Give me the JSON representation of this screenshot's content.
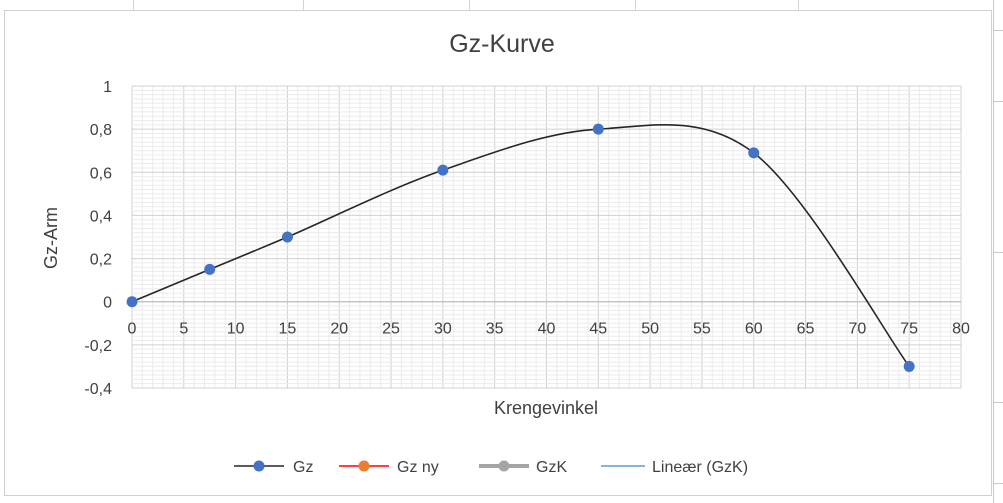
{
  "chart_data": {
    "type": "scatter",
    "title": "Gz-Kurve",
    "xlabel": "Krengevinkel",
    "ylabel": "Gz-Arm",
    "xlim": [
      0,
      80
    ],
    "ylim": [
      -0.4,
      1
    ],
    "x_ticks": [
      "0",
      "5",
      "10",
      "15",
      "20",
      "25",
      "30",
      "35",
      "40",
      "45",
      "50",
      "55",
      "60",
      "65",
      "70",
      "75",
      "80"
    ],
    "y_ticks": [
      "1",
      "0,8",
      "0,6",
      "0,4",
      "0,2",
      "0",
      "-0,2",
      "-0,4"
    ],
    "grid": "major and minor",
    "legend_position": "bottom",
    "series": [
      {
        "name": "Gz",
        "color": "#4472C4",
        "line_color": "#262626",
        "marker": "circle",
        "smooth": true,
        "points": [
          [
            0,
            0
          ],
          [
            7.5,
            0.15
          ],
          [
            15,
            0.3
          ],
          [
            30,
            0.61
          ],
          [
            45,
            0.8
          ],
          [
            60,
            0.69
          ],
          [
            75,
            -0.3
          ]
        ]
      },
      {
        "name": "Gz ny",
        "color": "#ED7D31",
        "line_color": "#FF0000",
        "marker": "circle",
        "points": []
      },
      {
        "name": "GzK",
        "color": "#A5A5A5",
        "line_color": "#A5A5A5",
        "marker": "circle",
        "points": []
      },
      {
        "name": "Lineær (GzK)",
        "color": "#5B9BD5",
        "line_color": "#5B9BD5",
        "marker": "none",
        "trendline": true,
        "points": []
      }
    ]
  }
}
